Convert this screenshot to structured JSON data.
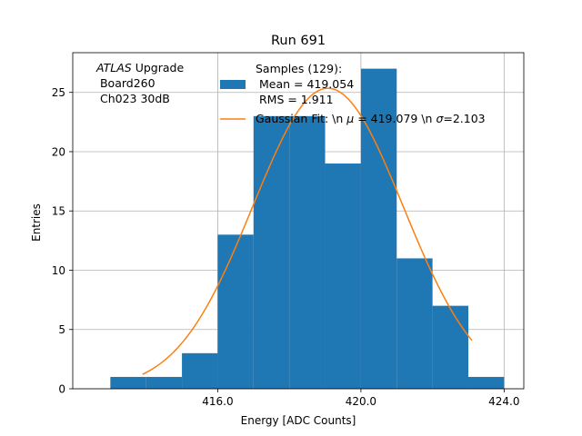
{
  "chart_data": {
    "type": "bar",
    "title": "Run 691",
    "xlabel": "Energy [ADC Counts]",
    "ylabel": "Entries",
    "xlim": [
      411.95,
      424.55
    ],
    "ylim": [
      0,
      28.35
    ],
    "grid": true,
    "xticks": [
      {
        "value": 416,
        "label": "416.0"
      },
      {
        "value": 420,
        "label": "420.0"
      },
      {
        "value": 424,
        "label": "424.0"
      }
    ],
    "yticks": [
      {
        "value": 0,
        "label": "0"
      },
      {
        "value": 5,
        "label": "5"
      },
      {
        "value": 10,
        "label": "10"
      },
      {
        "value": 15,
        "label": "15"
      },
      {
        "value": 20,
        "label": "20"
      },
      {
        "value": 25,
        "label": "25"
      }
    ],
    "histogram": {
      "bins": [
        {
          "x0": 413,
          "x1": 414,
          "count": 1
        },
        {
          "x0": 414,
          "x1": 415,
          "count": 1
        },
        {
          "x0": 415,
          "x1": 416,
          "count": 3
        },
        {
          "x0": 416,
          "x1": 417,
          "count": 13
        },
        {
          "x0": 417,
          "x1": 418,
          "count": 23
        },
        {
          "x0": 418,
          "x1": 419,
          "count": 23
        },
        {
          "x0": 419,
          "x1": 420,
          "count": 19
        },
        {
          "x0": 420,
          "x1": 421,
          "count": 27
        },
        {
          "x0": 421,
          "x1": 422,
          "count": 11
        },
        {
          "x0": 422,
          "x1": 423,
          "count": 7
        },
        {
          "x0": 423,
          "x1": 424,
          "count": 1
        }
      ],
      "color": "#1f77b4"
    },
    "fit": {
      "type": "gaussian",
      "mu": 419.079,
      "sigma": 2.103,
      "amplitude": 25.35,
      "x_range": [
        413.9,
        423.1
      ],
      "color": "#ff7f0e"
    },
    "annotation": {
      "lines": [
        "ATLAS Upgrade",
        " Board260",
        " Ch023 30dB"
      ],
      "italic_word": "ATLAS",
      "rest_of_first_line": " Upgrade"
    },
    "legend": {
      "placement": "top-right",
      "entries": [
        {
          "kind": "patch",
          "text_lines": [
            "Samples (129):",
            " Mean = 419.054",
            " RMS = 1.911"
          ]
        },
        {
          "kind": "line",
          "text": "Gaussian Fit: \\n $\\mu$ = 419.079 \\n $\\sigma$=2.103",
          "display_parts": [
            "Gaussian Fit: \\n ",
            "μ",
            " = 419.079 \\n ",
            "σ",
            "=2.103"
          ]
        }
      ]
    }
  }
}
